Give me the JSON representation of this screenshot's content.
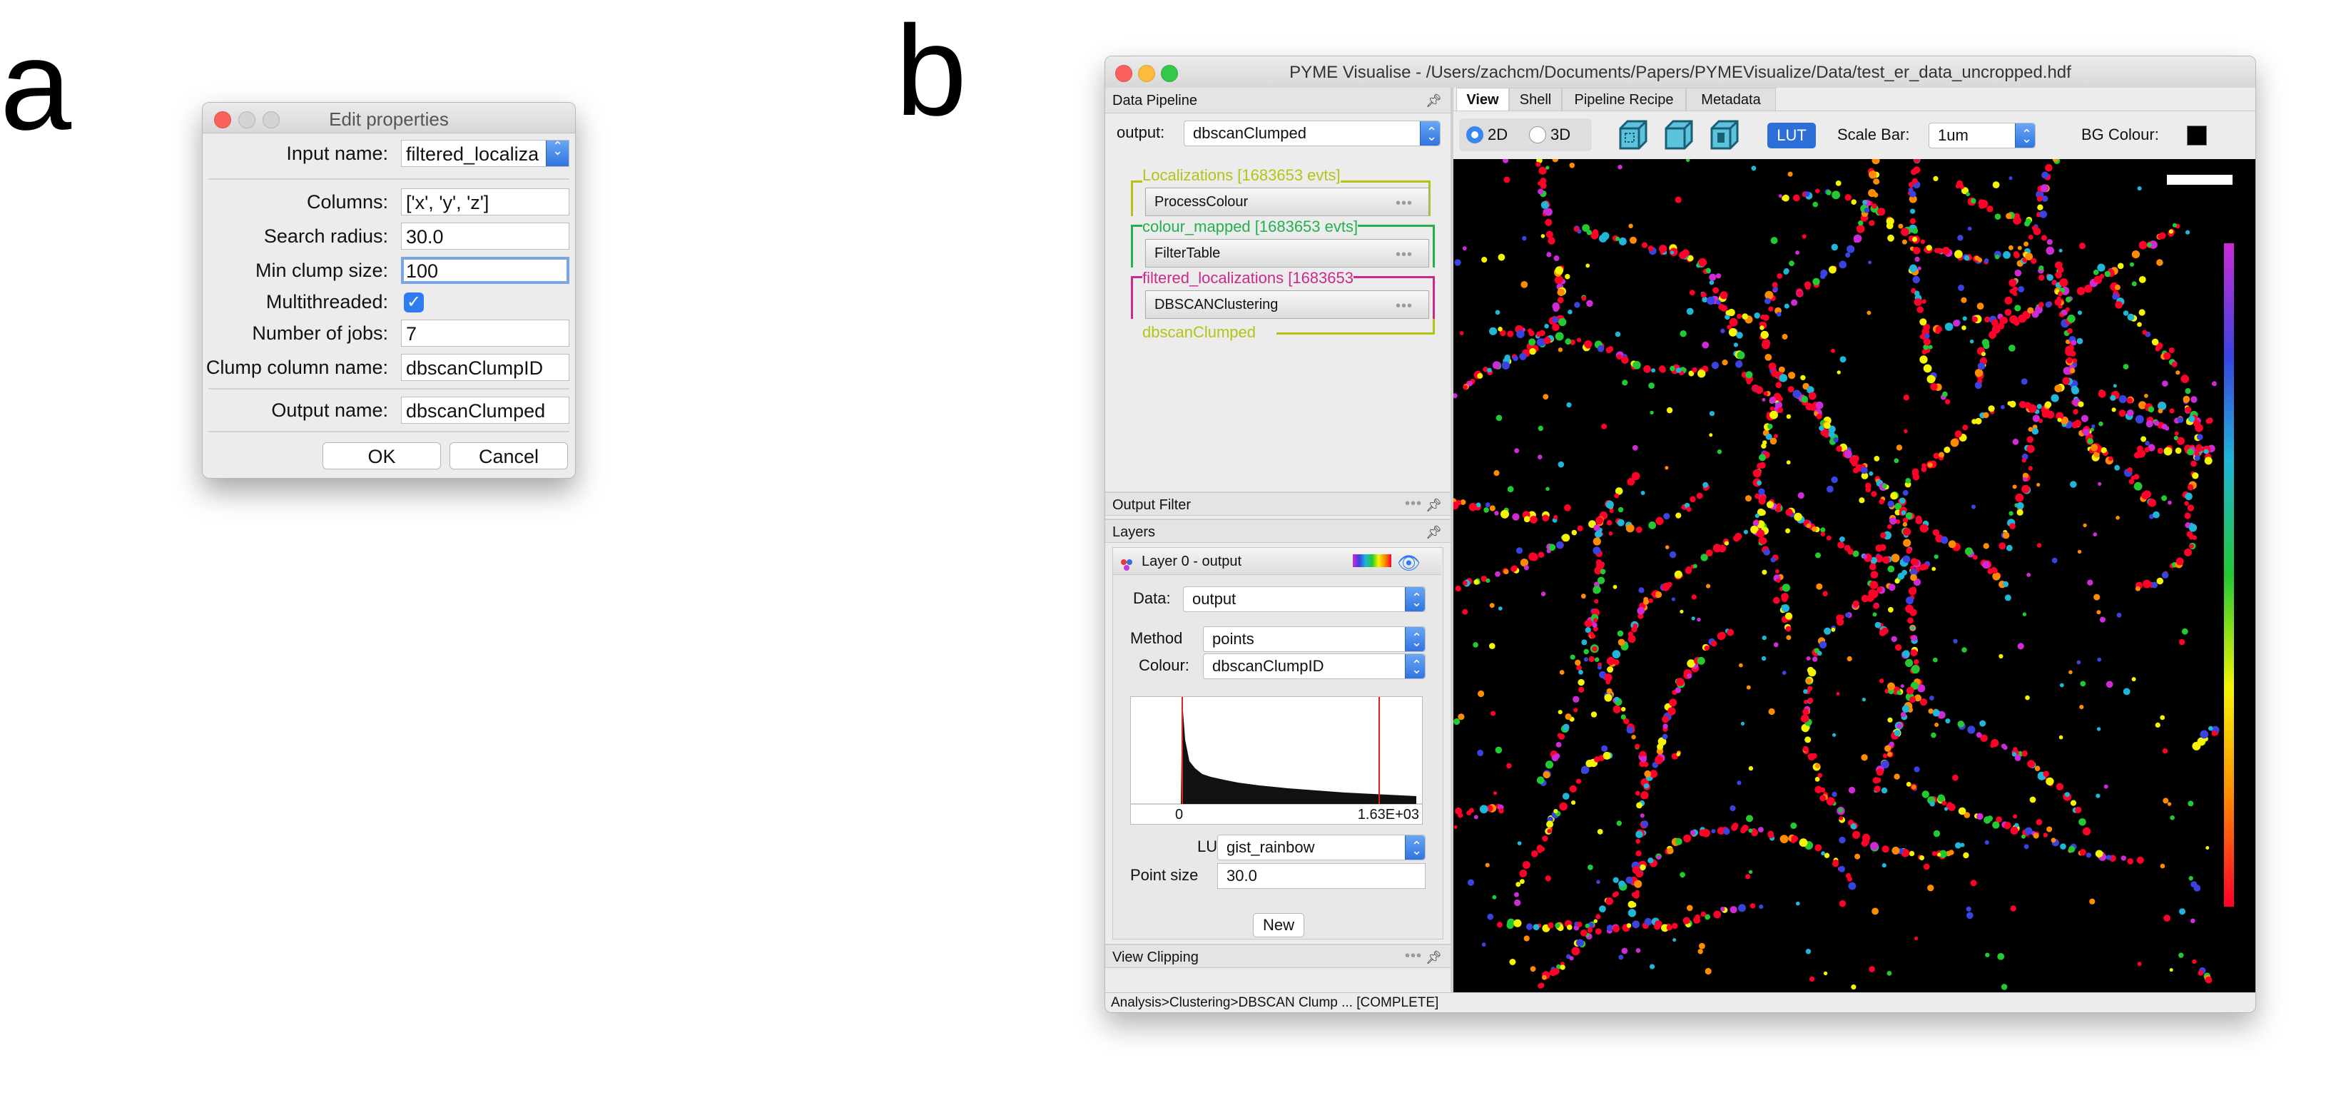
{
  "panel_labels": {
    "a": "a",
    "b": "b"
  },
  "dialog": {
    "title": "Edit properties",
    "fields": [
      {
        "label": "Input name:",
        "value": "filtered_localiza",
        "kind": "combo"
      },
      {
        "label": "Columns:",
        "value": "['x', 'y', 'z']",
        "kind": "text"
      },
      {
        "label": "Search radius:",
        "value": "30.0",
        "kind": "text"
      },
      {
        "label": "Min clump size:",
        "value": "100",
        "kind": "text",
        "focused": true
      },
      {
        "label": "Multithreaded:",
        "checked": true,
        "kind": "checkbox"
      },
      {
        "label": "Number of jobs:",
        "value": "7",
        "kind": "text"
      },
      {
        "label": "Clump column name:",
        "value": "dbscanClumpID",
        "kind": "text"
      },
      {
        "label": "Output name:",
        "value": "dbscanClumped",
        "kind": "text"
      }
    ],
    "ok_label": "OK",
    "cancel_label": "Cancel"
  },
  "window": {
    "title": "PYME Visualise - /Users/zachcm/Documents/Papers/PYMEVisualize/Data/test_er_data_uncropped.hdf",
    "data_pipeline": {
      "header": "Data Pipeline",
      "output_label": "output:",
      "output_value": "dbscanClumped",
      "items": [
        {
          "type": "data",
          "text": "Localizations [1683653 evts]",
          "color": "#b5c316"
        },
        {
          "type": "module",
          "text": "ProcessColour"
        },
        {
          "type": "data",
          "text": "colour_mapped [1683653 evts]",
          "color": "#22b14c"
        },
        {
          "type": "module",
          "text": "FilterTable"
        },
        {
          "type": "data",
          "text": "filtered_localizations [1683653",
          "color": "#cc2a8a"
        },
        {
          "type": "module",
          "text": "DBSCANClustering"
        },
        {
          "type": "data",
          "text": "dbscanClumped",
          "color": "#b5c316"
        }
      ]
    },
    "output_filter_header": "Output Filter",
    "layers": {
      "header": "Layers",
      "layer_title": "Layer 0 - output",
      "data_label": "Data:",
      "data_value": "output",
      "method_label": "Method",
      "method_value": "points",
      "colour_label": "Colour:",
      "colour_value": "dbscanClumpID",
      "hist_min": "0",
      "hist_max": "1.63E+03",
      "lut_label": "LUT:",
      "lut_value": "gist_rainbow",
      "point_size_label": "Point size",
      "point_size_value": "30.0",
      "new_button": "New"
    },
    "view_clipping_header": "View Clipping",
    "tabs": [
      "View",
      "Shell",
      "Pipeline Recipe",
      "Metadata"
    ],
    "active_tab": "View",
    "toolbar": {
      "mode_2d": "2D",
      "mode_3d": "3D",
      "selected_mode": "2D",
      "lut_button": "LUT",
      "scale_bar_label": "Scale Bar:",
      "scale_bar_value": "1um",
      "bg_colour_label": "BG Colour:",
      "bg_colour": "#000000"
    },
    "status": "Analysis>Clustering>DBSCAN Clump ... [COMPLETE]"
  },
  "colors": {
    "accent_blue": "#2f7cf0",
    "canvas_bg": "#000000",
    "lut_bar": [
      "#ff0029",
      "#ff8c00",
      "#f5f500",
      "#22c933",
      "#1fb6d8",
      "#3a43e0",
      "#cc2bd6"
    ]
  }
}
